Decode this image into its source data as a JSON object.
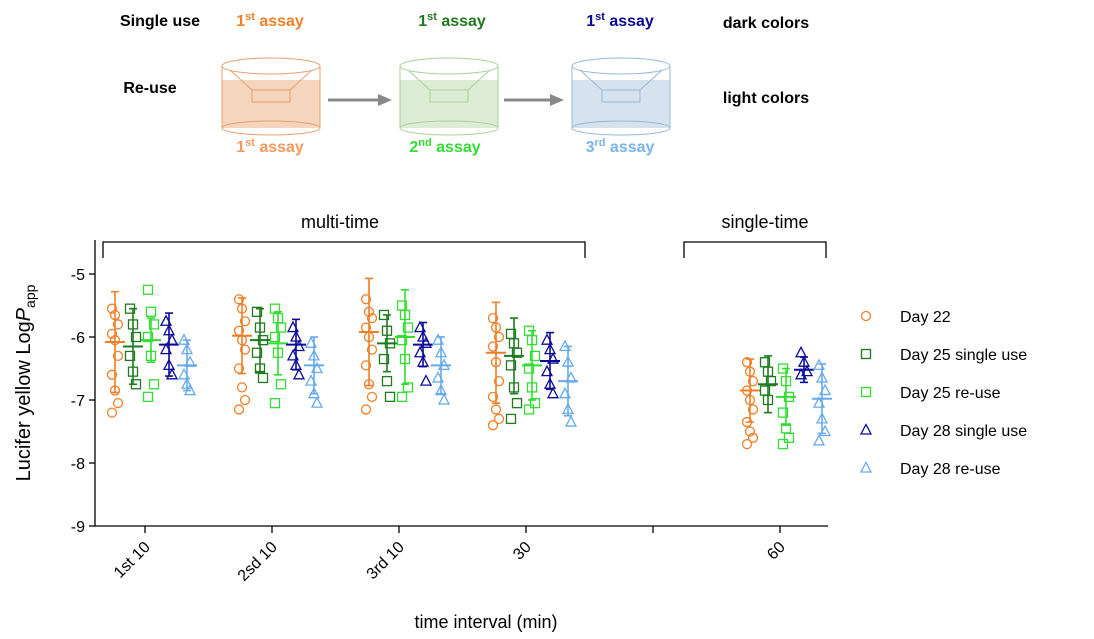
{
  "schematic": {
    "single_use": "Single use",
    "re_use": "Re-use",
    "dark_colors": "dark colors",
    "light_colors": "light colors",
    "top_labels": [
      {
        "base": "1",
        "sup": "st",
        "tail": " assay"
      },
      {
        "base": "1",
        "sup": "st",
        "tail": " assay"
      },
      {
        "base": "1",
        "sup": "st",
        "tail": " assay"
      }
    ],
    "bottom_labels": [
      {
        "base": "1",
        "sup": "st",
        "tail": " assay"
      },
      {
        "base": "2",
        "sup": "nd",
        "tail": " assay"
      },
      {
        "base": "3",
        "sup": "rd",
        "tail": " assay"
      }
    ]
  },
  "chart_data": {
    "type": "scatter",
    "ylabel": "Lucifer yellow  Log",
    "ylabel_var": "P",
    "ylabel_sub": "app",
    "xlabel": "time interval (min)",
    "categories": [
      "1st 10",
      "2sd 10",
      "3rd 10",
      "30",
      null,
      "60"
    ],
    "ylim": [
      -9,
      -4.46
    ],
    "yticks": [
      -9,
      -8,
      -7,
      -6,
      -5
    ],
    "annotations": [
      "multi-time",
      "single-time"
    ],
    "legend": "right",
    "series": [
      {
        "name": "Day 22",
        "color": "#f07f26",
        "marker": "circle",
        "means": [
          -6.08,
          -5.98,
          -5.92,
          -6.25,
          null,
          -6.85
        ],
        "errors": [
          0.8,
          0.6,
          0.85,
          0.8,
          null,
          0.5
        ],
        "points": [
          [
            -5.55,
            -5.65,
            -5.8,
            -5.95,
            -6.05,
            -6.3,
            -6.6,
            -6.85,
            -7.05,
            -7.2
          ],
          [
            -5.4,
            -5.55,
            -5.75,
            -5.9,
            -6.05,
            -6.2,
            -6.5,
            -6.8,
            -7.0,
            -7.15
          ],
          [
            -5.4,
            -5.6,
            -5.7,
            -5.85,
            -6.0,
            -6.2,
            -6.45,
            -6.75,
            -6.95,
            -7.15
          ],
          [
            -5.7,
            -5.85,
            -6.0,
            -6.15,
            -6.4,
            -6.7,
            -6.95,
            -7.15,
            -7.3,
            -7.4
          ],
          null,
          [
            -6.4,
            -6.55,
            -6.7,
            -6.85,
            -7.0,
            -7.15,
            -7.35,
            -7.5,
            -7.6,
            -7.7
          ]
        ]
      },
      {
        "name": "Day 25 single use",
        "color": "#1f7a1f",
        "marker": "square",
        "means": [
          -6.15,
          -6.05,
          -6.1,
          -6.3,
          null,
          -6.75
        ],
        "errors": [
          0.6,
          0.5,
          0.45,
          0.6,
          null,
          0.45
        ],
        "points": [
          [
            -5.55,
            -5.8,
            -6.0,
            -6.3,
            -6.55,
            -6.75
          ],
          [
            -5.6,
            -5.85,
            -6.05,
            -6.25,
            -6.5,
            -6.65
          ],
          [
            -5.65,
            -5.9,
            -6.1,
            -6.35,
            -6.7,
            -6.95
          ],
          [
            -5.95,
            -6.1,
            -6.25,
            -6.45,
            -6.8,
            -7.05,
            -7.3
          ],
          null,
          [
            -6.4,
            -6.55,
            -6.7,
            -6.85,
            -7.0
          ]
        ]
      },
      {
        "name": "Day 25 re-use",
        "color": "#33dd33",
        "marker": "square",
        "means": [
          -6.05,
          -6.1,
          -6.0,
          -6.45,
          null,
          -6.95
        ],
        "errors": [
          0.35,
          0.5,
          0.75,
          0.55,
          null,
          0.45
        ],
        "points": [
          [
            -5.25,
            -5.6,
            -5.8,
            -6.0,
            -6.3,
            -6.75,
            -6.95
          ],
          [
            -5.55,
            -5.7,
            -5.85,
            -6.0,
            -6.25,
            -6.75,
            -7.05
          ],
          [
            -5.5,
            -5.65,
            -5.85,
            -6.05,
            -6.35,
            -6.8,
            -6.95
          ],
          [
            -5.9,
            -6.05,
            -6.3,
            -6.5,
            -6.8,
            -7.05,
            -7.15
          ],
          null,
          [
            -6.5,
            -6.7,
            -6.95,
            -7.2,
            -7.45,
            -7.6,
            -7.7
          ]
        ]
      },
      {
        "name": "Day 28 single use",
        "color": "#0a0a99",
        "marker": "triangle",
        "means": [
          -6.12,
          -6.12,
          -6.12,
          -6.38,
          null,
          -6.52
        ],
        "errors": [
          0.5,
          0.4,
          0.35,
          0.45,
          null,
          0.2
        ],
        "points": [
          [
            -5.75,
            -5.9,
            -6.05,
            -6.2,
            -6.45,
            -6.6
          ],
          [
            -5.85,
            -6.0,
            -6.15,
            -6.3,
            -6.45,
            -6.6
          ],
          [
            -5.85,
            -6.0,
            -6.1,
            -6.25,
            -6.4,
            -6.7
          ],
          [
            -6.05,
            -6.2,
            -6.35,
            -6.55,
            -6.75,
            -6.9
          ],
          null,
          [
            -6.25,
            -6.4,
            -6.55,
            -6.6
          ]
        ]
      },
      {
        "name": "Day 28 re-use",
        "color": "#66aaee",
        "marker": "triangle",
        "means": [
          -6.45,
          -6.45,
          -6.45,
          -6.7,
          null,
          -6.98
        ],
        "errors": [
          0.4,
          0.45,
          0.45,
          0.55,
          null,
          0.55
        ],
        "points": [
          [
            -6.05,
            -6.2,
            -6.4,
            -6.6,
            -6.75,
            -6.85
          ],
          [
            -6.1,
            -6.3,
            -6.5,
            -6.7,
            -6.9,
            -7.05
          ],
          [
            -6.05,
            -6.25,
            -6.45,
            -6.65,
            -6.85,
            -7.0
          ],
          [
            -6.15,
            -6.4,
            -6.65,
            -6.9,
            -7.15,
            -7.35
          ],
          null,
          [
            -6.45,
            -6.65,
            -6.85,
            -7.05,
            -7.3,
            -7.5,
            -7.65
          ]
        ]
      }
    ]
  }
}
